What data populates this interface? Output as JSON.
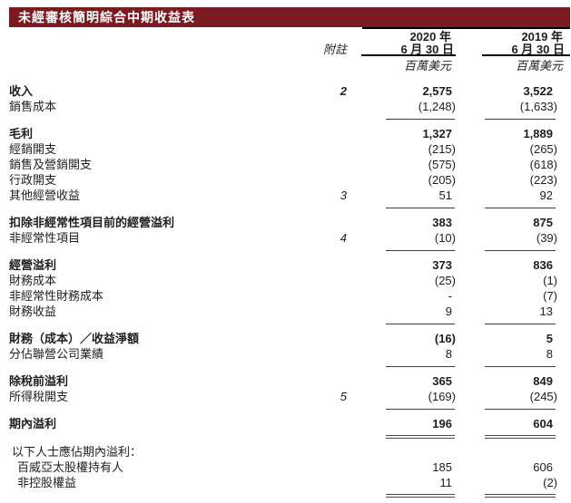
{
  "title": "未經審核簡明綜合中期收益表",
  "header": {
    "note_label": "附註",
    "col2020": {
      "year": "2020 年",
      "date": "6 月 30 日",
      "unit": "百萬美元"
    },
    "col2019": {
      "year": "2019 年",
      "date": "6 月 30 日",
      "unit": "百萬美元"
    }
  },
  "rows": [
    {
      "type": "data",
      "label": "收入",
      "note": "2",
      "v2020": "2,575",
      "v2019": "3,522",
      "bold": true
    },
    {
      "type": "data",
      "label": "銷售成本",
      "v2020": "(1,248)",
      "v2019": "(1,633)"
    },
    {
      "type": "rule"
    },
    {
      "type": "data",
      "label": "毛利",
      "v2020": "1,327",
      "v2019": "1,889",
      "bold": true
    },
    {
      "type": "data",
      "label": "經銷開支",
      "v2020": "(215)",
      "v2019": "(265)"
    },
    {
      "type": "data",
      "label": "銷售及營銷開支",
      "v2020": "(575)",
      "v2019": "(618)"
    },
    {
      "type": "data",
      "label": "行政開支",
      "v2020": "(205)",
      "v2019": "(223)"
    },
    {
      "type": "data",
      "label": "其他經營收益",
      "note": "3",
      "v2020": "51",
      "v2019": "92"
    },
    {
      "type": "rule"
    },
    {
      "type": "data",
      "label": "扣除非經常性項目前的經營溢利",
      "v2020": "383",
      "v2019": "875",
      "bold": true
    },
    {
      "type": "data",
      "label": "非經常性項目",
      "note": "4",
      "v2020": "(10)",
      "v2019": "(39)"
    },
    {
      "type": "rule"
    },
    {
      "type": "data",
      "label": "經營溢利",
      "v2020": "373",
      "v2019": "836",
      "bold": true
    },
    {
      "type": "data",
      "label": "財務成本",
      "v2020": "(25)",
      "v2019": "(1)"
    },
    {
      "type": "data",
      "label": "非經常性財務成本",
      "v2020": "-",
      "v2019": "(7)"
    },
    {
      "type": "data",
      "label": "財務收益",
      "v2020": "9",
      "v2019": "13"
    },
    {
      "type": "rule"
    },
    {
      "type": "data",
      "label": "財務（成本）／收益淨額",
      "v2020": "(16)",
      "v2019": "5",
      "bold": true
    },
    {
      "type": "data",
      "label": "分佔聯營公司業績",
      "v2020": "8",
      "v2019": "8"
    },
    {
      "type": "rule"
    },
    {
      "type": "data",
      "label": "除稅前溢利",
      "v2020": "365",
      "v2019": "849",
      "bold": true
    },
    {
      "type": "data",
      "label": "所得稅開支",
      "note": "5",
      "v2020": "(169)",
      "v2019": "(245)"
    },
    {
      "type": "rule"
    },
    {
      "type": "data",
      "label": "期內溢利",
      "v2020": "196",
      "v2019": "604",
      "bold": true
    },
    {
      "type": "drule"
    },
    {
      "type": "data",
      "label": "以下人士應佔期內溢利：",
      "indent": 1
    },
    {
      "type": "data",
      "label": "百威亞太股權持有人",
      "v2020": "185",
      "v2019": "606",
      "indent": 2
    },
    {
      "type": "data",
      "label": "非控股權益",
      "v2020": "11",
      "v2019": "(2)",
      "indent": 2
    },
    {
      "type": "drule"
    }
  ]
}
